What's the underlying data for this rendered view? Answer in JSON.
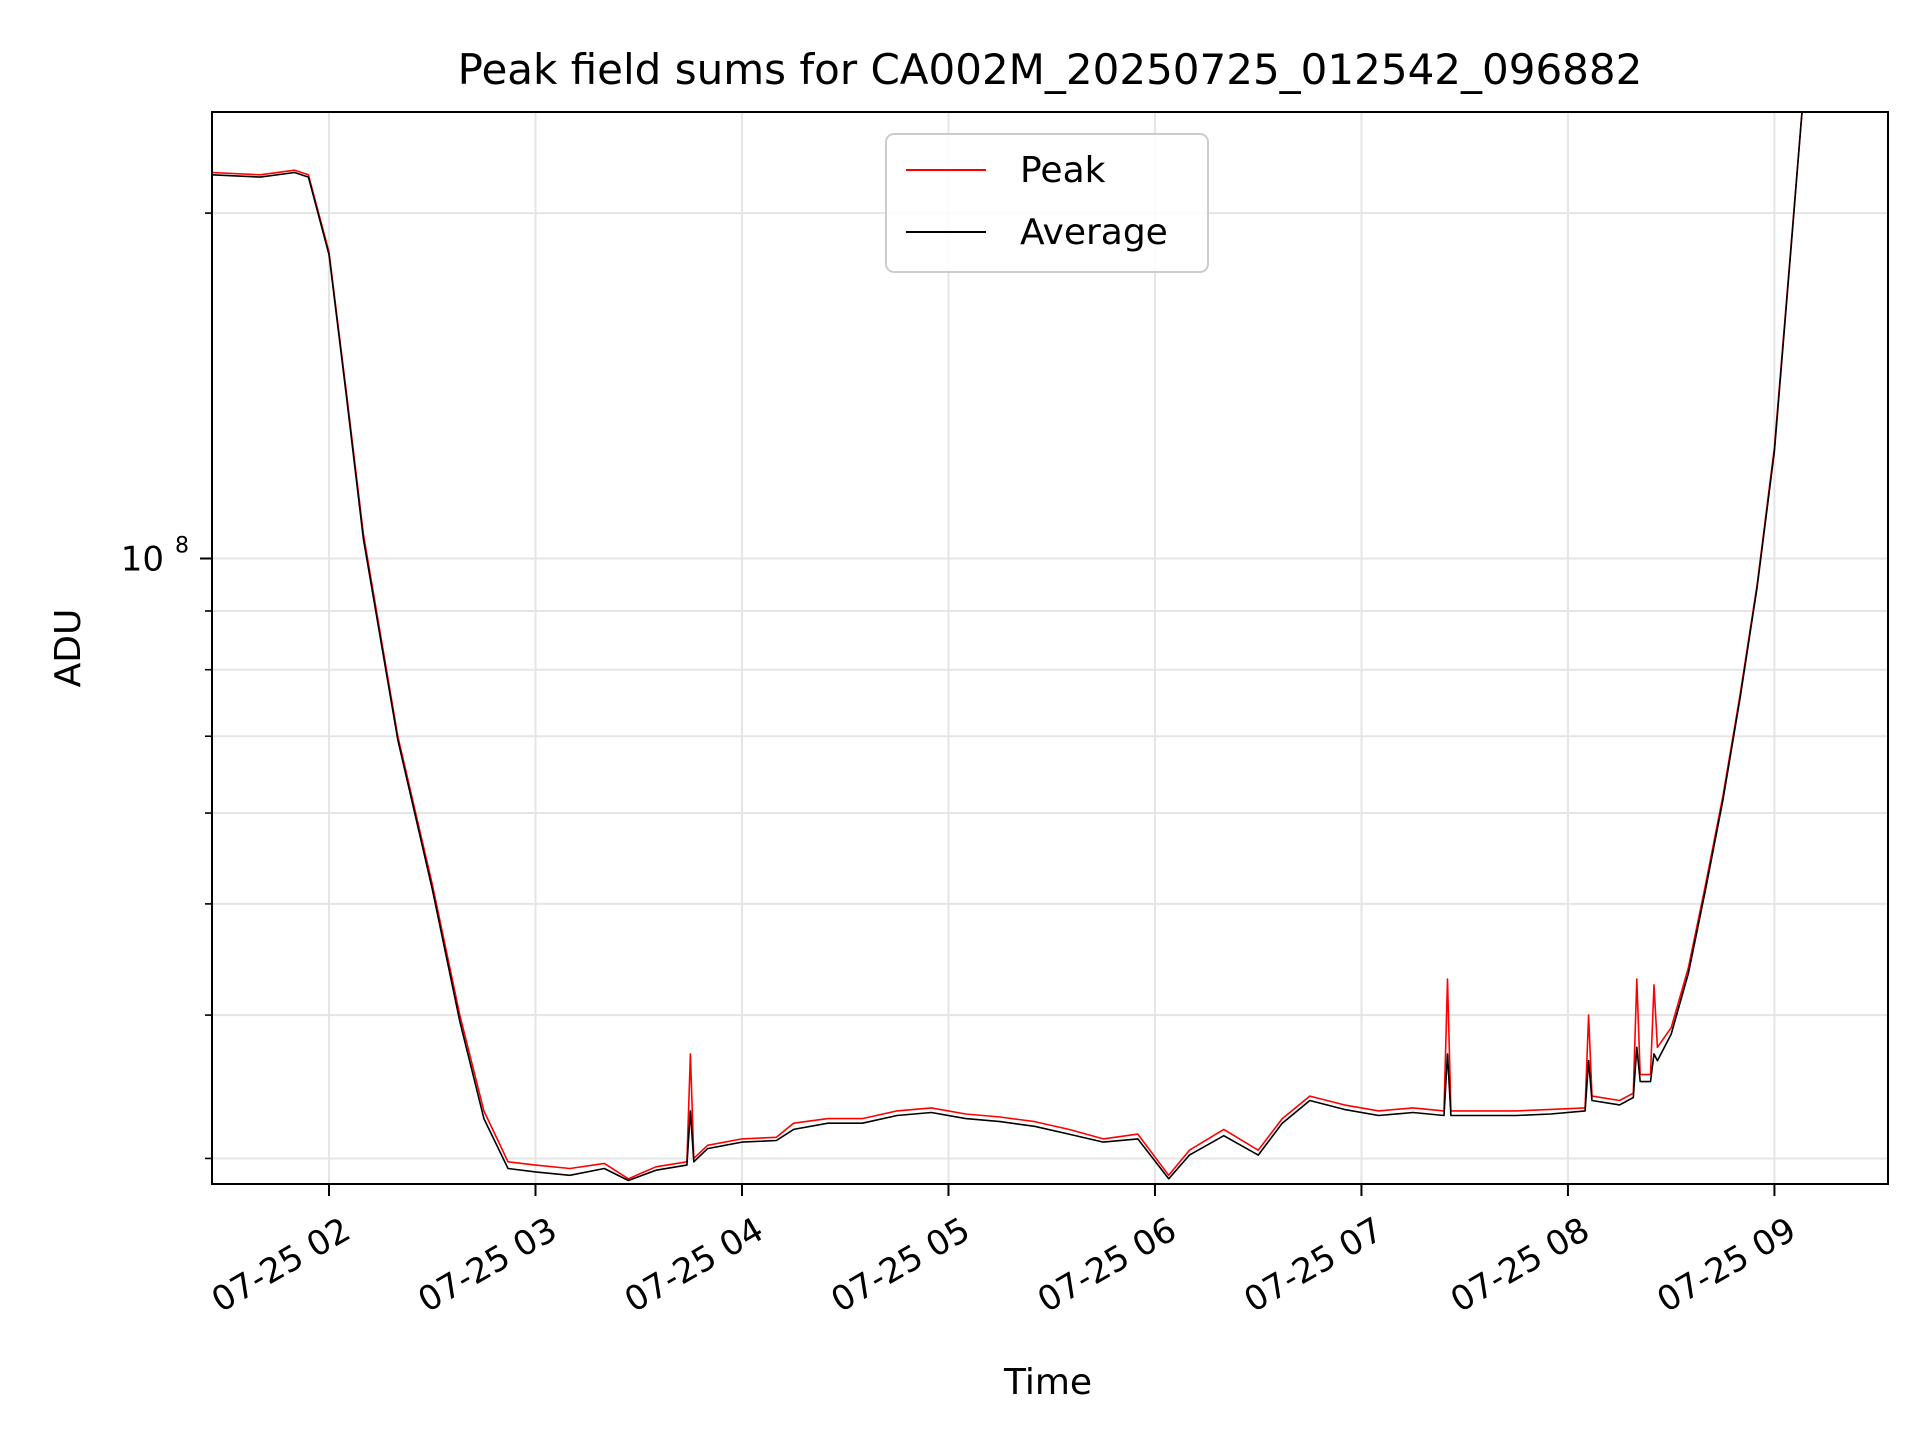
{
  "chart_data": {
    "type": "line",
    "title": "Peak field sums for CA002M_20250725_012542_096882",
    "xlabel": "Time",
    "ylabel": "ADU",
    "x_axis": {
      "type": "time",
      "range": [
        "2025-07-25 01:26",
        "2025-07-25 09:33"
      ],
      "ticks": [
        "2025-07-25 02:00",
        "2025-07-25 03:00",
        "2025-07-25 04:00",
        "2025-07-25 05:00",
        "2025-07-25 06:00",
        "2025-07-25 07:00",
        "2025-07-25 08:00",
        "2025-07-25 09:00"
      ],
      "tick_labels": [
        "07-25 02",
        "07-25 03",
        "07-25 04",
        "07-25 05",
        "07-25 06",
        "07-25 07",
        "07-25 08",
        "07-25 09"
      ]
    },
    "y_axis": {
      "scale": "log",
      "range": [
        28500000,
        245000000
      ],
      "labeled_ticks": [
        100000000
      ],
      "labeled_tick_text": "10",
      "labeled_tick_exp": "8",
      "minor_ticks": [
        30000000,
        40000000,
        50000000,
        60000000,
        70000000,
        80000000,
        90000000,
        200000000
      ]
    },
    "grid": true,
    "legend": {
      "placement": "top-center",
      "entries": [
        "Peak",
        "Average"
      ]
    },
    "colors": {
      "Peak": "#ff0000",
      "Average": "#000000"
    },
    "series": [
      {
        "name": "Peak",
        "x": [
          "2025-07-25 01:26",
          "2025-07-25 01:40",
          "2025-07-25 01:50",
          "2025-07-25 01:54",
          "2025-07-25 02:00",
          "2025-07-25 02:05",
          "2025-07-25 02:10",
          "2025-07-25 02:20",
          "2025-07-25 02:30",
          "2025-07-25 02:38",
          "2025-07-25 02:45",
          "2025-07-25 02:52",
          "2025-07-25 03:00",
          "2025-07-25 03:10",
          "2025-07-25 03:20",
          "2025-07-25 03:27",
          "2025-07-25 03:35",
          "2025-07-25 03:44",
          "2025-07-25 03:45",
          "2025-07-25 03:46",
          "2025-07-25 03:50",
          "2025-07-25 04:00",
          "2025-07-25 04:10",
          "2025-07-25 04:15",
          "2025-07-25 04:25",
          "2025-07-25 04:35",
          "2025-07-25 04:45",
          "2025-07-25 04:55",
          "2025-07-25 05:05",
          "2025-07-25 05:15",
          "2025-07-25 05:25",
          "2025-07-25 05:35",
          "2025-07-25 05:45",
          "2025-07-25 05:55",
          "2025-07-25 06:04",
          "2025-07-25 06:10",
          "2025-07-25 06:20",
          "2025-07-25 06:30",
          "2025-07-25 06:37",
          "2025-07-25 06:45",
          "2025-07-25 06:55",
          "2025-07-25 07:05",
          "2025-07-25 07:15",
          "2025-07-25 07:24",
          "2025-07-25 07:25",
          "2025-07-25 07:26",
          "2025-07-25 07:35",
          "2025-07-25 07:45",
          "2025-07-25 07:55",
          "2025-07-25 08:05",
          "2025-07-25 08:06",
          "2025-07-25 08:07",
          "2025-07-25 08:15",
          "2025-07-25 08:19",
          "2025-07-25 08:20",
          "2025-07-25 08:21",
          "2025-07-25 08:24",
          "2025-07-25 08:25",
          "2025-07-25 08:26",
          "2025-07-25 08:30",
          "2025-07-25 08:35",
          "2025-07-25 08:40",
          "2025-07-25 08:45",
          "2025-07-25 08:50",
          "2025-07-25 08:55",
          "2025-07-25 09:00",
          "2025-07-25 09:05",
          "2025-07-25 09:08"
        ],
        "y": [
          217000000,
          216000000,
          218000000,
          216000000,
          185000000,
          140000000,
          105000000,
          70000000,
          52000000,
          40000000,
          33000000,
          29800000,
          29600000,
          29400000,
          29700000,
          28800000,
          29500000,
          29800000,
          37000000,
          30000000,
          30800000,
          31200000,
          31300000,
          32200000,
          32500000,
          32500000,
          33000000,
          33200000,
          32800000,
          32600000,
          32300000,
          31800000,
          31200000,
          31500000,
          29000000,
          30500000,
          31800000,
          30500000,
          32500000,
          34000000,
          33400000,
          33000000,
          33200000,
          33000000,
          43000000,
          33000000,
          33000000,
          33000000,
          33100000,
          33200000,
          40000000,
          34000000,
          33700000,
          34200000,
          43000000,
          35500000,
          35500000,
          42500000,
          37500000,
          39000000,
          44000000,
          52000000,
          62000000,
          76000000,
          95000000,
          125000000,
          190000000,
          245000000
        ]
      },
      {
        "name": "Average",
        "x": [
          "2025-07-25 01:26",
          "2025-07-25 01:40",
          "2025-07-25 01:50",
          "2025-07-25 01:54",
          "2025-07-25 02:00",
          "2025-07-25 02:05",
          "2025-07-25 02:10",
          "2025-07-25 02:20",
          "2025-07-25 02:30",
          "2025-07-25 02:38",
          "2025-07-25 02:45",
          "2025-07-25 02:52",
          "2025-07-25 03:00",
          "2025-07-25 03:10",
          "2025-07-25 03:20",
          "2025-07-25 03:27",
          "2025-07-25 03:35",
          "2025-07-25 03:44",
          "2025-07-25 03:45",
          "2025-07-25 03:46",
          "2025-07-25 03:50",
          "2025-07-25 04:00",
          "2025-07-25 04:10",
          "2025-07-25 04:15",
          "2025-07-25 04:25",
          "2025-07-25 04:35",
          "2025-07-25 04:45",
          "2025-07-25 04:55",
          "2025-07-25 05:05",
          "2025-07-25 05:15",
          "2025-07-25 05:25",
          "2025-07-25 05:35",
          "2025-07-25 05:45",
          "2025-07-25 05:55",
          "2025-07-25 06:04",
          "2025-07-25 06:10",
          "2025-07-25 06:20",
          "2025-07-25 06:30",
          "2025-07-25 06:37",
          "2025-07-25 06:45",
          "2025-07-25 06:55",
          "2025-07-25 07:05",
          "2025-07-25 07:15",
          "2025-07-25 07:24",
          "2025-07-25 07:25",
          "2025-07-25 07:26",
          "2025-07-25 07:35",
          "2025-07-25 07:45",
          "2025-07-25 07:55",
          "2025-07-25 08:05",
          "2025-07-25 08:06",
          "2025-07-25 08:07",
          "2025-07-25 08:15",
          "2025-07-25 08:19",
          "2025-07-25 08:20",
          "2025-07-25 08:21",
          "2025-07-25 08:24",
          "2025-07-25 08:25",
          "2025-07-25 08:26",
          "2025-07-25 08:30",
          "2025-07-25 08:35",
          "2025-07-25 08:40",
          "2025-07-25 08:45",
          "2025-07-25 08:50",
          "2025-07-25 08:55",
          "2025-07-25 09:00",
          "2025-07-25 09:05",
          "2025-07-25 09:08"
        ],
        "y": [
          216000000,
          215000000,
          217000000,
          215000000,
          184000000,
          139000000,
          104000000,
          69500000,
          51500000,
          39500000,
          32500000,
          29400000,
          29200000,
          29000000,
          29400000,
          28700000,
          29300000,
          29600000,
          33000000,
          29800000,
          30600000,
          31000000,
          31100000,
          31800000,
          32200000,
          32200000,
          32700000,
          32900000,
          32500000,
          32300000,
          32000000,
          31500000,
          31000000,
          31200000,
          28800000,
          30200000,
          31400000,
          30200000,
          32200000,
          33700000,
          33100000,
          32700000,
          32900000,
          32700000,
          37000000,
          32700000,
          32700000,
          32700000,
          32800000,
          33000000,
          36500000,
          33700000,
          33400000,
          33900000,
          37500000,
          35000000,
          35000000,
          37000000,
          36500000,
          38500000,
          43500000,
          51500000,
          61500000,
          75500000,
          94500000,
          124000000,
          189000000,
          245000000
        ]
      }
    ]
  }
}
